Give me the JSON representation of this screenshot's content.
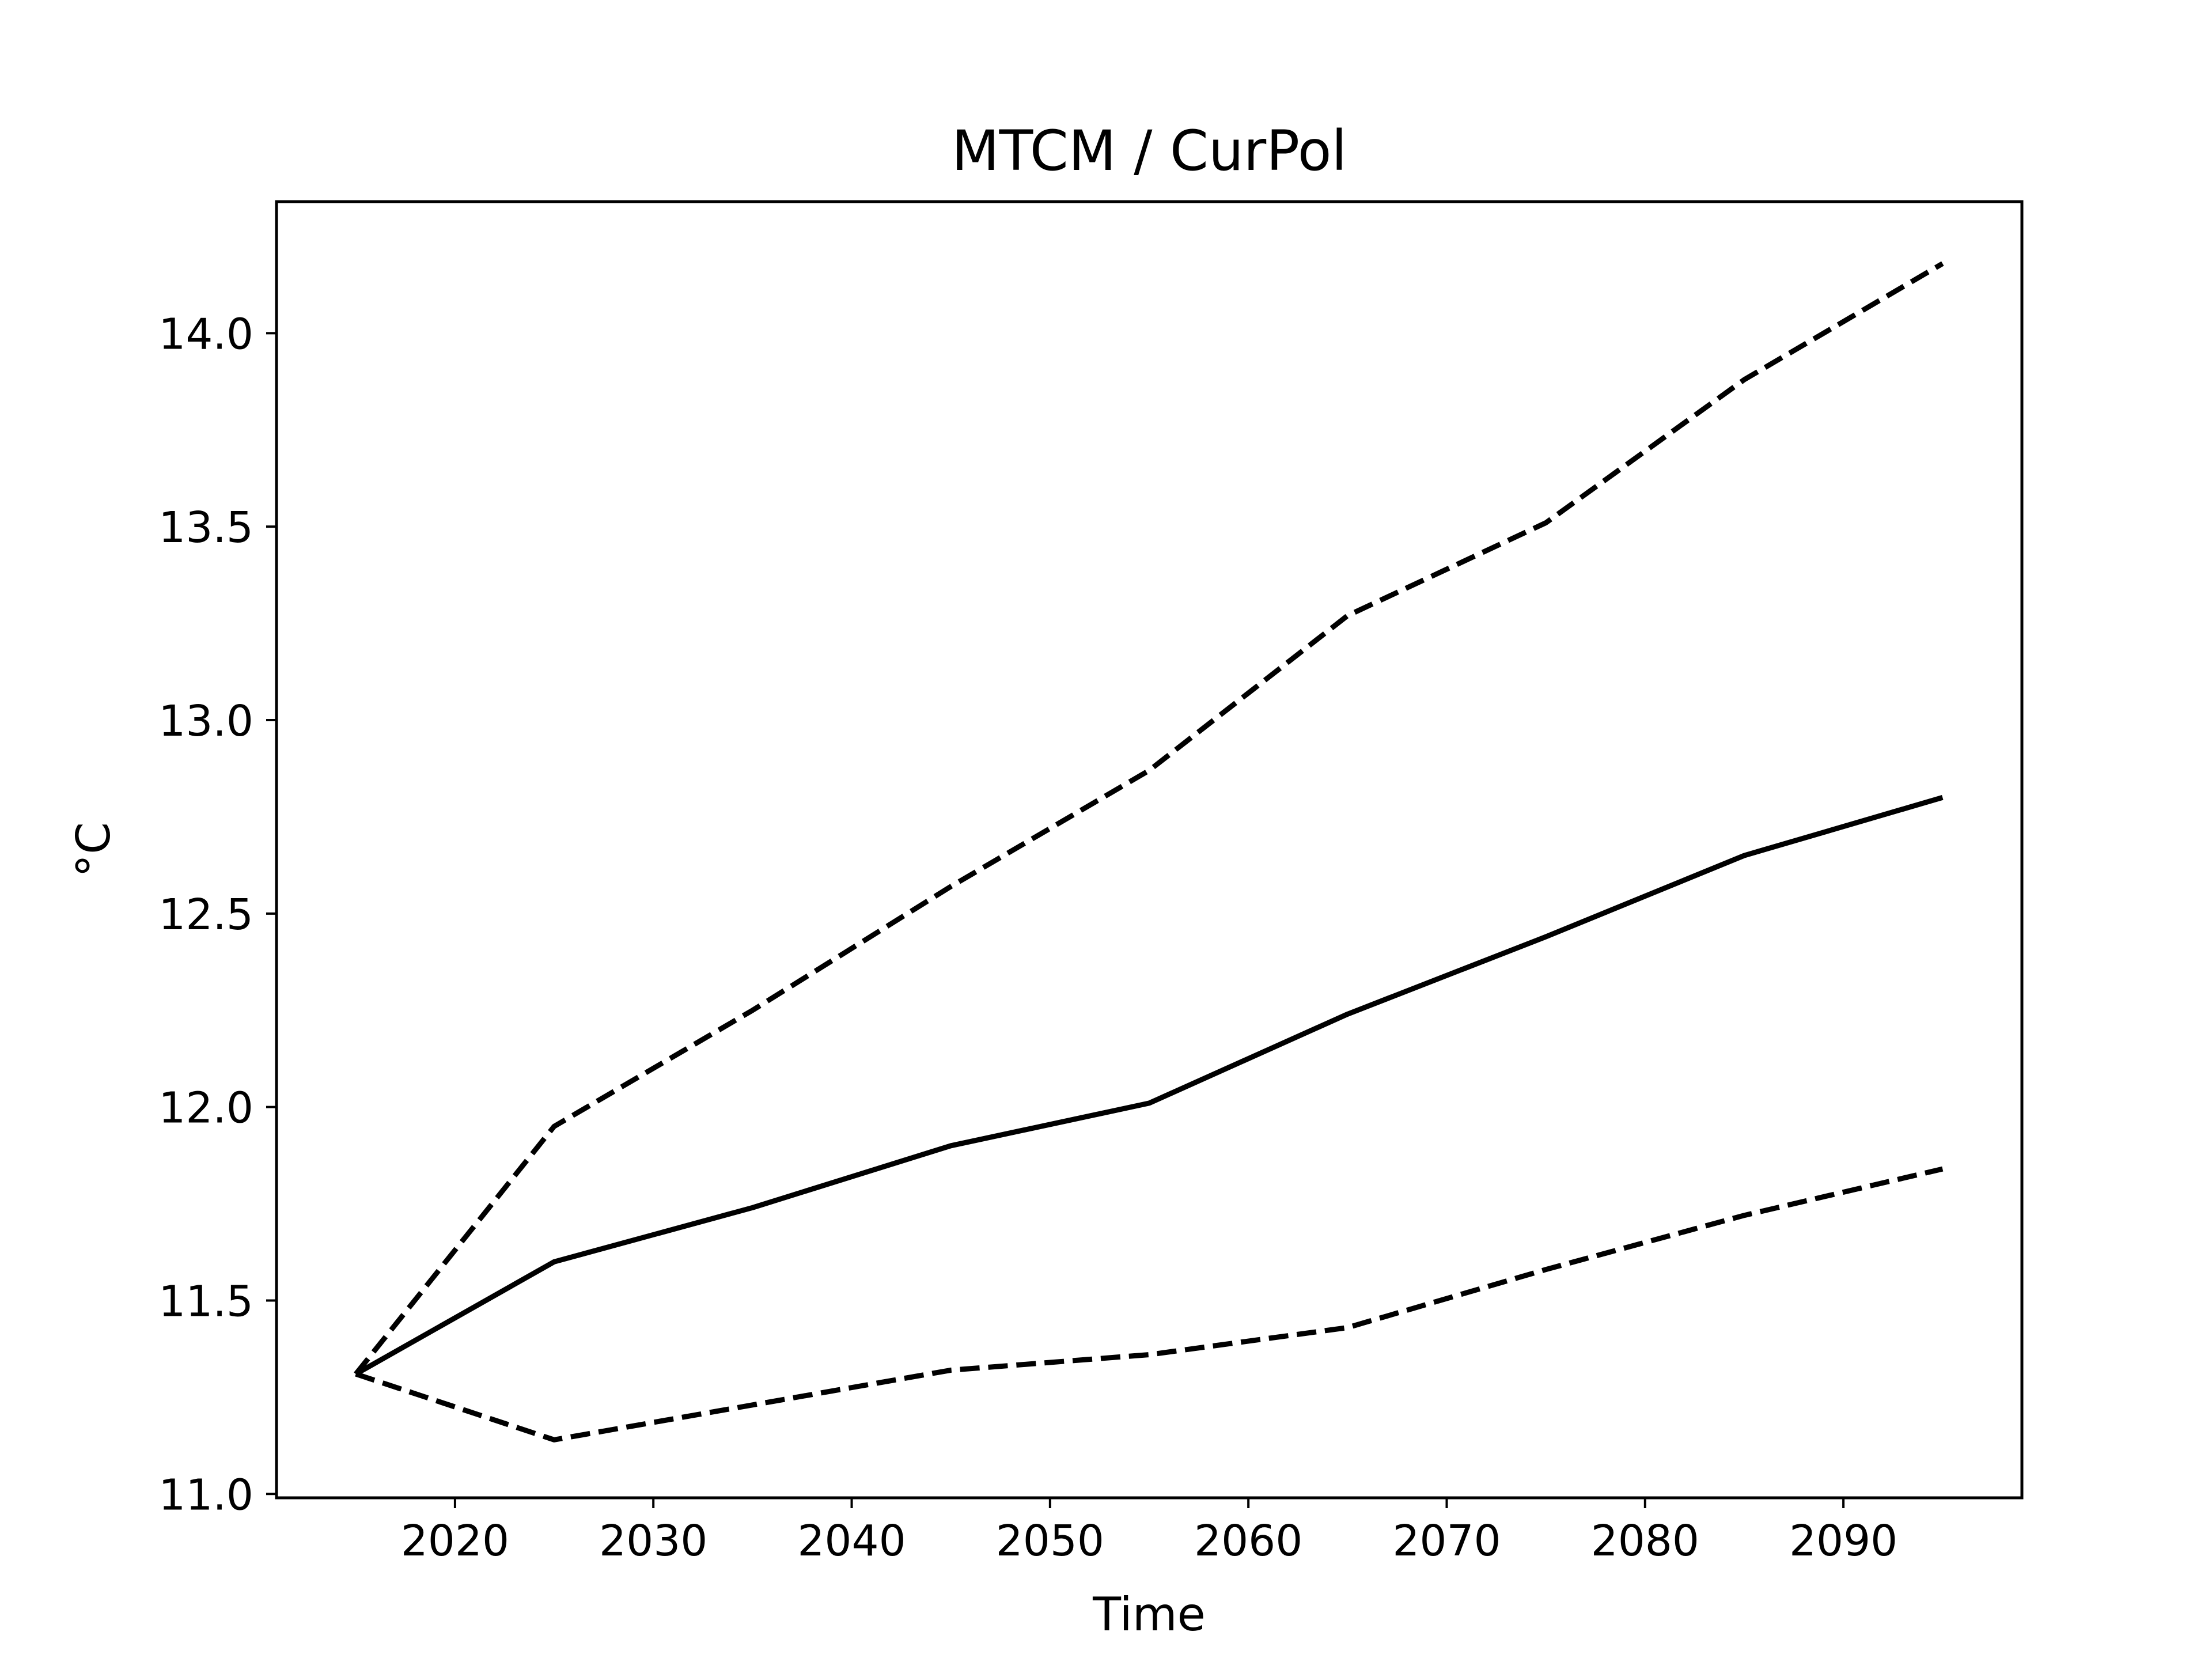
{
  "chart_data": {
    "type": "line",
    "title": "MTCM / CurPol",
    "xlabel": "Time",
    "ylabel": "°C",
    "xlim": [
      2011.0,
      2099.0
    ],
    "ylim": [
      10.99,
      14.34
    ],
    "xticks": [
      2020,
      2030,
      2040,
      2050,
      2060,
      2070,
      2080,
      2090
    ],
    "xtick_labels": [
      "2020",
      "2030",
      "2040",
      "2050",
      "2060",
      "2070",
      "2080",
      "2090"
    ],
    "yticks": [
      11.0,
      11.5,
      12.0,
      12.5,
      13.0,
      13.5,
      14.0
    ],
    "ytick_labels": [
      "11.0",
      "11.5",
      "12.0",
      "12.5",
      "13.0",
      "13.5",
      "14.0"
    ],
    "grid": false,
    "line_color": "#000000",
    "series": [
      {
        "style": "solid",
        "x": [
          2015,
          2025,
          2035,
          2045,
          2055,
          2065,
          2075,
          2085,
          2095
        ],
        "y": [
          11.31,
          11.6,
          11.74,
          11.9,
          12.01,
          12.24,
          12.44,
          12.65,
          12.8
        ]
      },
      {
        "style": "dashed",
        "x": [
          2015,
          2025,
          2035,
          2045,
          2055,
          2065,
          2075,
          2085,
          2095
        ],
        "y": [
          11.31,
          11.95,
          12.25,
          12.57,
          12.87,
          13.27,
          13.51,
          13.88,
          14.18
        ]
      },
      {
        "style": "dashed",
        "x": [
          2015,
          2025,
          2035,
          2045,
          2055,
          2065,
          2075,
          2085,
          2095
        ],
        "y": [
          11.31,
          11.14,
          11.23,
          11.32,
          11.36,
          11.43,
          11.58,
          11.72,
          11.84
        ]
      }
    ]
  }
}
